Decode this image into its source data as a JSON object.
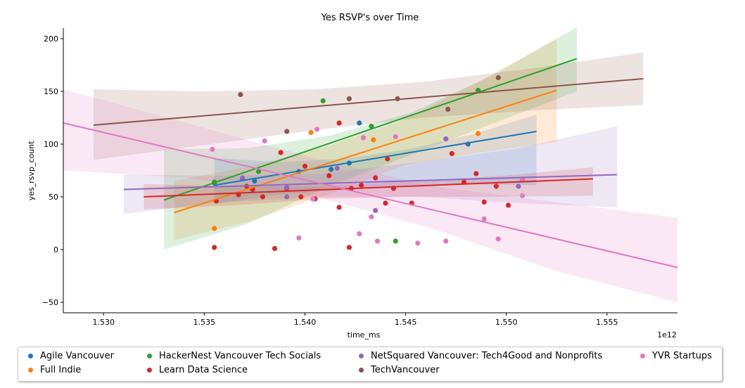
{
  "chart_data": {
    "type": "scatter",
    "title": "Yes RSVP's over Time",
    "xlabel": "time_ms",
    "ylabel": "yes_rsvp_count",
    "x_offset_label": "1e12",
    "xlim": [
      1.528,
      1.5585
    ],
    "ylim": [
      -60,
      210
    ],
    "x_ticks": [
      1.53,
      1.535,
      1.54,
      1.545,
      1.55,
      1.555
    ],
    "x_tick_labels": [
      "1.530",
      "1.535",
      "1.540",
      "1.545",
      "1.550",
      "1.555"
    ],
    "y_ticks": [
      -50,
      0,
      50,
      100,
      150,
      200
    ],
    "y_tick_labels": [
      "−50",
      "0",
      "50",
      "100",
      "150",
      "200"
    ],
    "grid": false,
    "legend_position": "bottom",
    "series": [
      {
        "name": "Agile Vancouver",
        "color": "#1f77b4",
        "points": [
          [
            1.5355,
            63
          ],
          [
            1.5369,
            67
          ],
          [
            1.5375,
            65
          ],
          [
            1.5397,
            74
          ],
          [
            1.5413,
            76
          ],
          [
            1.5422,
            82
          ],
          [
            1.5427,
            120
          ],
          [
            1.5481,
            100
          ]
        ],
        "fit": {
          "x": [
            1.5355,
            1.5515
          ],
          "y": [
            61,
            112
          ]
        },
        "band_hi": [
          87,
          83,
          86,
          95,
          109,
          128
        ],
        "band_lo": [
          43,
          52,
          57,
          61,
          62,
          61
        ]
      },
      {
        "name": "Full Indie",
        "color": "#ff7f0e",
        "points": [
          [
            1.5355,
            20
          ],
          [
            1.5403,
            111
          ],
          [
            1.5434,
            104
          ],
          [
            1.5486,
            110
          ]
        ],
        "fit": {
          "x": [
            1.5335,
            1.5525
          ],
          "y": [
            35,
            151
          ]
        },
        "band_hi": [
          65,
          79,
          98,
          123,
          160,
          200
        ],
        "band_lo": [
          9,
          27,
          52,
          80,
          92,
          102
        ]
      },
      {
        "name": "HackerNest Vancouver Tech Socials",
        "color": "#2ca02c",
        "points": [
          [
            1.5355,
            64
          ],
          [
            1.5377,
            74
          ],
          [
            1.5409,
            141
          ],
          [
            1.5433,
            117
          ],
          [
            1.5445,
            8
          ],
          [
            1.5486,
            151
          ]
        ],
        "fit": {
          "x": [
            1.533,
            1.5535
          ],
          "y": [
            47,
            181
          ]
        },
        "band_hi": [
          95,
          96,
          108,
          130,
          166,
          211
        ],
        "band_lo": [
          0,
          24,
          60,
          90,
          120,
          150
        ]
      },
      {
        "name": "Learn Data Science",
        "color": "#d62728",
        "points": [
          [
            1.5355,
            2
          ],
          [
            1.5356,
            46
          ],
          [
            1.5367,
            52
          ],
          [
            1.5371,
            60
          ],
          [
            1.5374,
            57
          ],
          [
            1.5379,
            50
          ],
          [
            1.5385,
            1
          ],
          [
            1.5388,
            92
          ],
          [
            1.5391,
            58
          ],
          [
            1.5398,
            50
          ],
          [
            1.54,
            79
          ],
          [
            1.5405,
            48
          ],
          [
            1.5412,
            70
          ],
          [
            1.5417,
            40
          ],
          [
            1.5417,
            120
          ],
          [
            1.5422,
            2
          ],
          [
            1.5423,
            58
          ],
          [
            1.5428,
            61
          ],
          [
            1.5435,
            68
          ],
          [
            1.544,
            44
          ],
          [
            1.5441,
            86
          ],
          [
            1.5444,
            58
          ],
          [
            1.5453,
            44
          ],
          [
            1.5473,
            91
          ],
          [
            1.5479,
            64
          ],
          [
            1.5485,
            72
          ],
          [
            1.5489,
            45
          ],
          [
            1.5495,
            60
          ],
          [
            1.5501,
            42
          ],
          [
            1.5508,
            66
          ]
        ],
        "fit": {
          "x": [
            1.532,
            1.5543
          ],
          "y": [
            50,
            67
          ]
        },
        "band_hi": [
          62,
          60,
          60,
          65,
          70,
          78
        ],
        "band_lo": [
          38,
          42,
          48,
          50,
          50,
          51
        ]
      },
      {
        "name": "NetSquared Vancouver: Tech4Good and Nonprofits",
        "color": "#9467bd",
        "points": [
          [
            1.5369,
            68
          ],
          [
            1.5391,
            50
          ],
          [
            1.5391,
            59
          ],
          [
            1.5416,
            77
          ],
          [
            1.5435,
            37
          ],
          [
            1.547,
            105
          ],
          [
            1.5506,
            60
          ]
        ],
        "fit": {
          "x": [
            1.531,
            1.5555
          ],
          "y": [
            57,
            71
          ]
        },
        "band_hi": [
          71,
          70,
          72,
          83,
          96,
          117
        ],
        "band_lo": [
          34,
          45,
          50,
          50,
          44,
          40
        ]
      },
      {
        "name": "TechVancouver",
        "color": "#8c564b",
        "points": [
          [
            1.5368,
            147
          ],
          [
            1.5391,
            112
          ],
          [
            1.5422,
            143
          ],
          [
            1.5446,
            143
          ],
          [
            1.5471,
            133
          ],
          [
            1.5496,
            163
          ]
        ],
        "fit": {
          "x": [
            1.5295,
            1.5568
          ],
          "y": [
            118,
            162
          ]
        },
        "band_hi": [
          152,
          150,
          152,
          159,
          172,
          187
        ],
        "band_lo": [
          85,
          99,
          113,
          125,
          132,
          137
        ]
      },
      {
        "name": "YVR Startups",
        "color": "#e377c2",
        "points": [
          [
            1.5354,
            95
          ],
          [
            1.538,
            103
          ],
          [
            1.5397,
            11
          ],
          [
            1.5404,
            48
          ],
          [
            1.5406,
            114
          ],
          [
            1.5427,
            15
          ],
          [
            1.5429,
            106
          ],
          [
            1.5433,
            31
          ],
          [
            1.5436,
            8
          ],
          [
            1.5445,
            107
          ],
          [
            1.5456,
            6
          ],
          [
            1.547,
            8
          ],
          [
            1.5489,
            29
          ],
          [
            1.5496,
            10
          ],
          [
            1.5508,
            51
          ],
          [
            1.5508,
            66
          ]
        ],
        "fit": {
          "x": [
            1.528,
            1.5585
          ],
          "y": [
            120,
            -17
          ]
        },
        "band_hi": [
          152,
          120,
          88,
          60,
          45,
          30
        ],
        "band_lo": [
          75,
          68,
          52,
          20,
          -20,
          -50
        ]
      }
    ]
  }
}
